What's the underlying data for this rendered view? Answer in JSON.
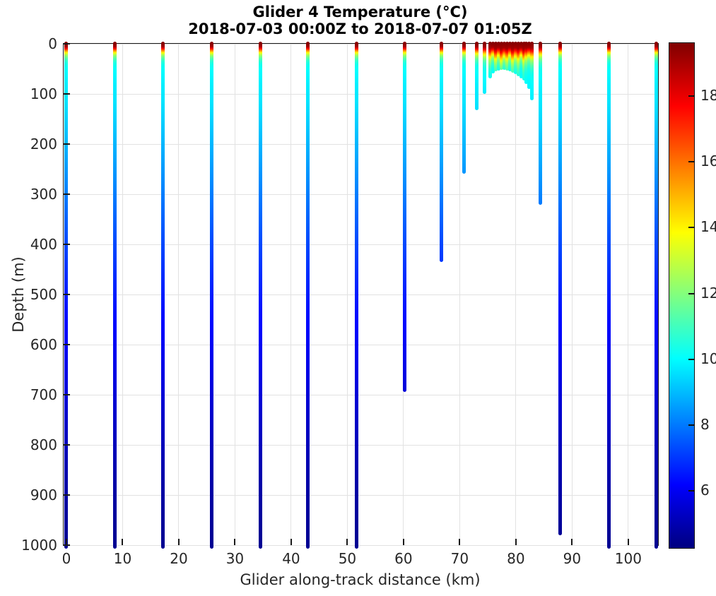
{
  "title": {
    "line1": "Glider 4 Temperature (°C)",
    "line2": "2018-07-03 00:00Z to 2018-07-07 01:05Z"
  },
  "axes": {
    "x": {
      "label": "Glider along-track distance (km)",
      "ticks": [
        0,
        10,
        20,
        30,
        40,
        50,
        60,
        70,
        80,
        90,
        100
      ],
      "range_km": [
        -0.5,
        105.3
      ],
      "grid": true
    },
    "y": {
      "label": "Depth (m)",
      "ticks": [
        0,
        100,
        200,
        300,
        400,
        500,
        600,
        700,
        800,
        900,
        1000
      ],
      "range_m": [
        0,
        1000
      ],
      "grid": true
    }
  },
  "colorbar": {
    "ticks": [
      6,
      8,
      10,
      12,
      14,
      16,
      18
    ],
    "vmin": 4.27,
    "vmax": 19.61,
    "colormap": "jet",
    "position": "right"
  },
  "chart_data": {
    "type": "scatter",
    "plot_style": "glider vertical temperature profile sections colored by temperature (jet colormap)",
    "title": "Glider 4 Temperature (°C)",
    "subtitle": "2018-07-03 00:00Z to 2018-07-07 01:05Z",
    "xlabel": "Glider along-track distance (km)",
    "ylabel": "Depth (m)",
    "xlim_km": [
      -0.5,
      105.3
    ],
    "ylim_m": [
      0,
      1000
    ],
    "caxis_c": [
      4.27,
      19.61
    ],
    "colormap": "jet",
    "grid": true,
    "profiles": [
      {
        "x_km": 0.0,
        "max_depth_m": 1000,
        "surface_layer_scale": 1.0
      },
      {
        "x_km": 8.6,
        "max_depth_m": 1000,
        "surface_layer_scale": 1.0
      },
      {
        "x_km": 17.2,
        "max_depth_m": 1000,
        "surface_layer_scale": 1.0
      },
      {
        "x_km": 25.9,
        "max_depth_m": 1000,
        "surface_layer_scale": 1.0
      },
      {
        "x_km": 34.5,
        "max_depth_m": 1000,
        "surface_layer_scale": 1.0
      },
      {
        "x_km": 43.0,
        "max_depth_m": 1000,
        "surface_layer_scale": 1.0
      },
      {
        "x_km": 51.6,
        "max_depth_m": 1000,
        "surface_layer_scale": 1.0
      },
      {
        "x_km": 60.2,
        "max_depth_m": 692,
        "surface_layer_scale": 1.0
      },
      {
        "x_km": 66.7,
        "max_depth_m": 433,
        "surface_layer_scale": 1.0
      },
      {
        "x_km": 70.8,
        "max_depth_m": 256,
        "surface_layer_scale": 1.0
      },
      {
        "x_km": 73.0,
        "max_depth_m": 130,
        "surface_layer_scale": 1.1
      },
      {
        "x_km": 74.4,
        "max_depth_m": 97,
        "surface_layer_scale": 1.2
      },
      {
        "x_km": 75.4,
        "max_depth_m": 66,
        "surface_layer_scale": 1.5
      },
      {
        "x_km": 75.9,
        "max_depth_m": 57,
        "surface_layer_scale": 1.2
      },
      {
        "x_km": 76.4,
        "max_depth_m": 52,
        "surface_layer_scale": 1.7
      },
      {
        "x_km": 76.9,
        "max_depth_m": 50,
        "surface_layer_scale": 1.3
      },
      {
        "x_km": 77.4,
        "max_depth_m": 49,
        "surface_layer_scale": 1.8
      },
      {
        "x_km": 77.9,
        "max_depth_m": 49,
        "surface_layer_scale": 1.4
      },
      {
        "x_km": 78.4,
        "max_depth_m": 50,
        "surface_layer_scale": 1.7
      },
      {
        "x_km": 78.9,
        "max_depth_m": 52,
        "surface_layer_scale": 1.3
      },
      {
        "x_km": 79.4,
        "max_depth_m": 55,
        "surface_layer_scale": 1.8
      },
      {
        "x_km": 79.9,
        "max_depth_m": 58,
        "surface_layer_scale": 1.4
      },
      {
        "x_km": 80.4,
        "max_depth_m": 62,
        "surface_layer_scale": 1.7
      },
      {
        "x_km": 80.9,
        "max_depth_m": 66,
        "surface_layer_scale": 1.3
      },
      {
        "x_km": 81.4,
        "max_depth_m": 71,
        "surface_layer_scale": 1.8
      },
      {
        "x_km": 81.9,
        "max_depth_m": 78,
        "surface_layer_scale": 1.5
      },
      {
        "x_km": 82.4,
        "max_depth_m": 88,
        "surface_layer_scale": 1.3
      },
      {
        "x_km": 82.9,
        "max_depth_m": 110,
        "surface_layer_scale": 1.5
      },
      {
        "x_km": 84.3,
        "max_depth_m": 318,
        "surface_layer_scale": 1.2
      },
      {
        "x_km": 87.9,
        "max_depth_m": 977,
        "surface_layer_scale": 1.0
      },
      {
        "x_km": 96.6,
        "max_depth_m": 1000,
        "surface_layer_scale": 1.0
      },
      {
        "x_km": 105.0,
        "max_depth_m": 1000,
        "surface_layer_scale": 1.0
      }
    ],
    "temperature_vs_depth_c": [
      [
        0,
        19.5
      ],
      [
        6,
        19.0
      ],
      [
        10,
        17.5
      ],
      [
        14,
        15.5
      ],
      [
        18,
        13.8
      ],
      [
        22,
        12.6
      ],
      [
        27,
        11.6
      ],
      [
        32,
        10.9
      ],
      [
        40,
        10.3
      ],
      [
        55,
        10.0
      ],
      [
        80,
        9.8
      ],
      [
        120,
        9.6
      ],
      [
        180,
        9.1
      ],
      [
        250,
        8.5
      ],
      [
        320,
        7.9
      ],
      [
        400,
        7.25
      ],
      [
        500,
        6.6
      ],
      [
        600,
        6.05
      ],
      [
        700,
        5.6
      ],
      [
        800,
        5.15
      ],
      [
        900,
        4.8
      ],
      [
        1000,
        4.55
      ]
    ]
  }
}
